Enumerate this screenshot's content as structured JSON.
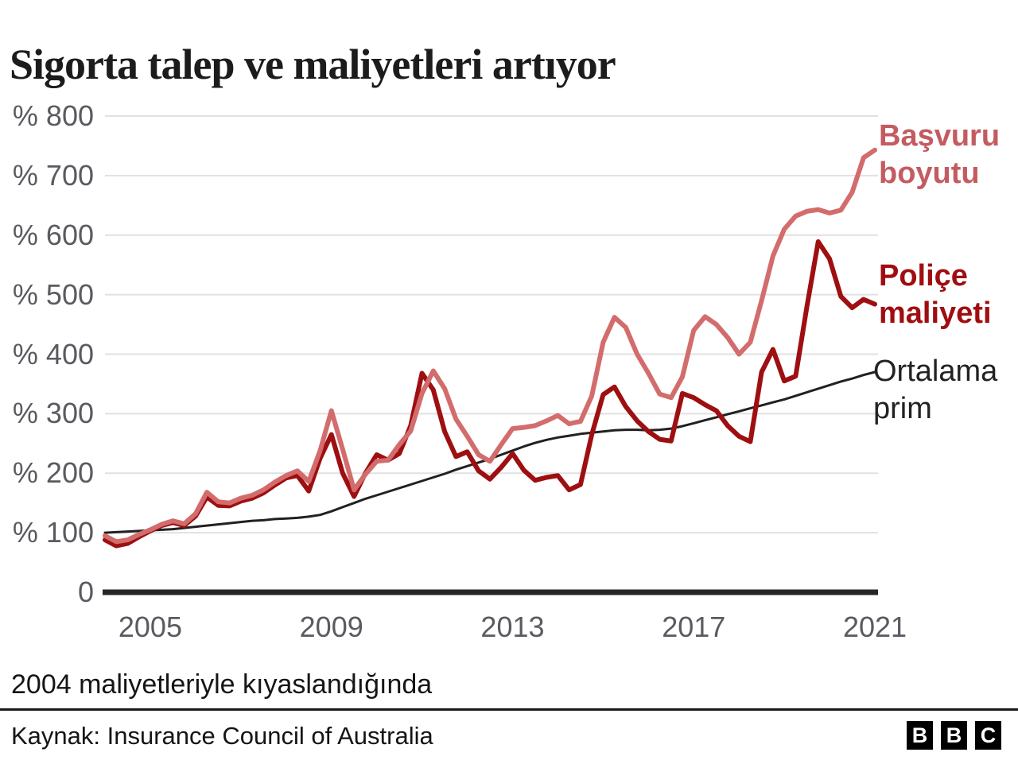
{
  "title": "Sigorta talep ve maliyetleri artıyor",
  "footnote": "2004 maliyetleriyle kıyaslandığında",
  "source": "Kaynak: Insurance Council of Australia",
  "logo_letters": [
    "B",
    "B",
    "C"
  ],
  "colors": {
    "background": "#ffffff",
    "title": "#1c1c1c",
    "tick_text": "#5a5a61",
    "gridline": "#e1e1e1",
    "axis_line": "#262626",
    "divider": "#1a1a1a",
    "pink_line": "#d36c6c",
    "pink_label": "#c45b60",
    "darkred_line": "#9e0f12",
    "darkred_label": "#a00d11",
    "black_line": "#212121",
    "black_label": "#222222"
  },
  "chart_data": {
    "type": "line",
    "title": "Sigorta talep ve maliyetleri artıyor",
    "note": "2004 maliyetleriyle kıyaslandığında",
    "x_start_year": 2004,
    "x_step_years": 0.25,
    "x_end_year": 2021,
    "x_ticks": [
      2005,
      2009,
      2013,
      2017,
      2021
    ],
    "y_ticks": [
      800,
      700,
      600,
      500,
      400,
      300,
      200,
      100,
      0
    ],
    "y_tick_prefix": "% ",
    "ylim": [
      0,
      800
    ],
    "grid": "horizontal-only",
    "legend_position": "right-of-line-ends",
    "series": [
      {
        "name": "Başvuru boyutu",
        "label_lines": [
          "Başvuru",
          "boyutu"
        ],
        "color": "#d36c6c",
        "label_color": "#c45b60",
        "stroke_width": 6,
        "values": [
          95,
          85,
          88,
          97,
          105,
          114,
          120,
          115,
          132,
          168,
          152,
          150,
          158,
          163,
          172,
          185,
          196,
          204,
          186,
          238,
          305,
          240,
          172,
          198,
          220,
          222,
          248,
          271,
          334,
          372,
          342,
          291,
          262,
          231,
          220,
          248,
          275,
          277,
          280,
          288,
          297,
          283,
          287,
          330,
          420,
          462,
          445,
          400,
          368,
          333,
          327,
          362,
          440,
          463,
          450,
          428,
          400,
          420,
          490,
          565,
          610,
          632,
          640,
          643,
          637,
          642,
          672,
          730,
          743
        ]
      },
      {
        "name": "Poliçe maliyeti",
        "label_lines": [
          "Poliçe",
          "maliyeti"
        ],
        "color": "#9e0f12",
        "label_color": "#a00d11",
        "stroke_width": 6,
        "values": [
          88,
          78,
          82,
          93,
          103,
          112,
          117,
          112,
          128,
          160,
          146,
          145,
          153,
          158,
          167,
          180,
          192,
          196,
          170,
          225,
          265,
          200,
          161,
          200,
          231,
          222,
          233,
          280,
          368,
          340,
          270,
          228,
          236,
          204,
          190,
          210,
          233,
          205,
          188,
          193,
          196,
          172,
          181,
          265,
          332,
          345,
          312,
          288,
          270,
          257,
          254,
          334,
          327,
          315,
          305,
          280,
          262,
          253,
          370,
          408,
          355,
          363,
          480,
          589,
          560,
          497,
          478,
          492,
          484
        ]
      },
      {
        "name": "Ortalama prim",
        "label_lines": [
          "Ortalama",
          "prim"
        ],
        "color": "#212121",
        "label_color": "#222222",
        "stroke_width": 3,
        "values": [
          100,
          101,
          102,
          103,
          104,
          105,
          106,
          108,
          110,
          112,
          114,
          116,
          118,
          120,
          121,
          123,
          124,
          125,
          127,
          130,
          136,
          143,
          150,
          157,
          163,
          169,
          175,
          181,
          187,
          193,
          199,
          206,
          212,
          218,
          224,
          231,
          238,
          245,
          251,
          256,
          260,
          263,
          266,
          268,
          270,
          272,
          273,
          273,
          272,
          273,
          275,
          279,
          284,
          289,
          294,
          299,
          304,
          309,
          314,
          319,
          324,
          330,
          336,
          342,
          348,
          354,
          359,
          365,
          370
        ]
      }
    ]
  }
}
